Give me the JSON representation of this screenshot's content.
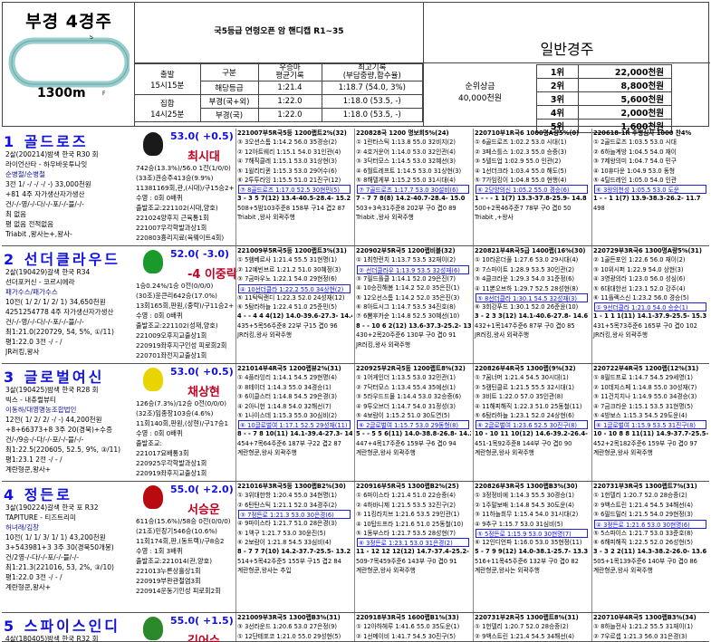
{
  "race": {
    "title": "부경 4경주",
    "distance": "1300m",
    "grade": "국5등급 연령오픈 암 핸디캡 R1~35",
    "type": "일반경주",
    "start_label": "출발",
    "start_time": "15시15분",
    "gather_label": "집합",
    "gather_time": "14시25분",
    "cols": [
      "구분",
      "우승마\n평균기록",
      "최고기록\n(부담중량,함수율)"
    ],
    "rows": [
      [
        "해당등급",
        "1:21.4",
        "1:18.7 (54.0, 3%)"
      ],
      [
        "부경(국+외)",
        "1:22.0",
        "1:18.0 (53.5, -)"
      ],
      [
        "부경(국)",
        "1:22.0",
        "1:18.0 (53.5, -)"
      ]
    ],
    "prize_label": "순위상금",
    "prize_total": "40,000천원",
    "prizes": [
      [
        "1위",
        "22,000천원"
      ],
      [
        "2위",
        "8,800천원"
      ],
      [
        "3위",
        "5,600천원"
      ],
      [
        "4위",
        "2,000천원"
      ],
      [
        "5위",
        "1,600천원"
      ]
    ]
  },
  "horses": [
    {
      "name": "1 골드로즈",
      "info": [
        "2살(200214)밤색 한국 R30 회",
        "라이언산타 - 하우바웃투나잇",
        "순병철/순병철",
        "3전 1/ -/ -/ -/ -) 33,000천원",
        "+81 4주 자가생산자가생산",
        "건/-/-영/-/-다/-/-포/-/-블/-/-",
        "최 없음",
        "평 없음 전적없음",
        "Triabit ,왕사는+,왕사-"
      ],
      "weight": "53.0( +0.5)",
      "jockey": "최시대",
      "silk": "#1a1a1a",
      "jinfo": [
        "742승(13.3%)/56.0 1전(1/0/0)",
        "(33조)권승주413승(9.9%)",
        "11381169회,관,(시대)/구15승2+",
        "수영 : 0회 0배퀴",
        "출발조교:221102(시대,양호)",
        "221024양후지 근육통1회",
        "221007우각학발과상1회",
        "220803흉리지료(육웨이트4회)"
      ],
      "past": [
        {
          "h": "221007부5R국5등 1200랩트2%(32)",
          "rows": [
            "③ 3오션스톰 1:14.2 56.0 35경승(2)",
            "② 12아트웨리 1:15.1 54.0 31인관(4)",
            "④ 7해직클레 1:15.1 53.0 31상현(3)",
            "⑤ 1윌리티퀸 1:15.3 53.0 29어수(6)",
            "⑥ 2투투라잉 1:15.5 51.0 21진구(12)"
          ],
          "hl": "⑦ 8골드로즈 1:17.0 52.5 30현민(5)",
          "tm": "3 - 3 5 7(12) 13.4-40.5-28.4- 15.2",
          "f": [
            "508+5밤103주준8 158부 구14 겹2 87",
            "Triabit ,왕사 외곽주행"
          ]
        },
        {
          "h": "220828국 1200 명보회5%(24)",
          "rows": [
            "① 1란타스틱 1:13.8 55.0 32비지(2)",
            "② 4호거운어 1:14.0 53.0 32인관(4)",
            "③ 3닥터모스 1:14.5 53.0 32혜선(3)",
            "④ 6월트레프트 1:14.5 53.0 31상현(3)",
            "⑤ 8해델게부 1:15.2 55.0 31시대(4)"
          ],
          "hl": "⑦ 7골드로즈 1:17.7 53.0 30설비(6)",
          "tm": "7 - 7 7 8(8) 14.2-40.7-28.4- 15.0",
          "f": [
            "503+3속31주준8 202부 구0 겹0 89",
            "Triabit ,왕사 외곽주행"
          ]
        },
        {
          "h": "220710부1R국6 1000명A량5%(0)",
          "rows": [
            "① 6골드로즈 1:02.2 53.0 시대(1)",
            "② 3페스틀스 1:02.3 55.0 승증(3)",
            "③ 5텔드업 1:02.9 55.0 인관(2)",
            "④ 1선더크라 1:03.4 55.0 해도(5)",
            "⑤ 7가임킹이 1:04.8 55.0 현행(4)"
          ],
          "hl": "⑥ 2당양의신 1:05.2 55.0 경승(6)",
          "tm": "1 - - - 1 1(7) 13.3-37.8-25.9- 14.8",
          "f": [
            "500+2목46주준7 78부 구0 겹0 50",
            "Triabit ,+왕사"
          ]
        },
        {
          "h": "220618-1R 주행심사 1000 찬4%",
          "rows": [
            "① 2골드로즈 1:03.5 53.0 시대",
            "② 6하늘계방 1:04.5 54.0 재이",
            "③ 7제왕의미 1:04.7 54.0 민구",
            "④ 10휴다운 1:04.9 53.0 동형",
            "⑤ 4틸드레인 1:05.0 54.0 인관"
          ],
          "hl": "⑥ 3왕의천성 1:05.5 53.0 도운",
          "tm": "1 - - 1 1(7) 13.9-38.3-26.2- 11.7",
          "f": [
            "498",
            ""
          ]
        }
      ]
    },
    {
      "name": "2 선더클라우드",
      "info": [
        "2살(190429)갈색 한국 R34",
        "선더포커신 - 코르시에라",
        "패가수스/패가수스",
        "10전( 1/ 2/ 1/ 2/ 1) 34,650천원",
        "4251254778 4주 자가생산자가생산",
        "건/-/-영/-/-다/-/-포/-/-블/-/-",
        "최1:21.0(220729, 54, 5%, ①/11)",
        "평1:22.0 3전 -/ - /",
        "JR러킹,왕사"
      ],
      "weight": "52.0( -3.0)",
      "jockey": "-4 이중락",
      "silk": "#1a9a2a",
      "jinfo": [
        "1승0.24%/1승 0전(0/0/0)",
        "(30조)윤큰리642승(17.0%)",
        "13회165회,판원,(중락)/구11승2+",
        "수영 : 0회 0배퀴",
        "출발조교:221102(성재,양호)",
        "221009오후지교출상1회",
        "220919좌후지구인성 피로회2회",
        "220701좌전지교출상1회"
      ],
      "past": [
        {
          "h": "221009부5R국5등 1200랩트3%(31)",
          "rows": [
            "① 5햄베르사 1:21.4 55.5 31현명(1)",
            "② 12예빈브르 1:21.2 51.0 30혜정(3)",
            "③ 7금마우노 1:22.1 54.0 29현정(6)"
          ],
          "hl": "④ 10선더클라 1:22.2 55.0 34상현(2)",
          "rows2": [
            "⑤ 11탁틱랜디 1:22.3 52.0 24성재(12)",
            "⑥ 5탐라하늘 1:22.4 51.0 25준민(5)"
          ],
          "tm": "4 - - 4 4 4(12) 14.0-39.6-27.3- 14.4",
          "f": [
            "435+5목56주준8 22부 구15 겹0 96",
            "JR러킹,왕사 외곽주행"
          ]
        },
        {
          "h": "220902부5R국5 1200랩비블(32)",
          "rows": [
            "① 1최항런치 1:13.7 53.5 32재이(2)"
          ],
          "hl": "② 선더클라우 1:13.9 53.5 32성재(6)",
          "rows2": [
            "③ 7필드플클 1:14.1 52.0 29은진(7)",
            "④ 10승진해봄 1:14.2 52.0 35은진(1)",
            "⑤ 12오선스톰 1:14.2 52.0 35은진(3)",
            "⑥ 8아트시그 1:14.7 53.5 34진호(8)",
            "⑦ 6뽐후카순 1:14.8 52.5 30혜선(10)"
          ],
          "tm": "8 - - 10 6 2(12) 13.6-37.3-25.2- 13.1",
          "f": [
            "430+2목20주준6 130부 구0 겹0 91",
            "JR러킹,왕사 외곽주행"
          ]
        },
        {
          "h": "220821부4R국5급 1400랩(16%(30)",
          "rows": [
            "① 10라온더풀 1:27.6 53.0 29시대(4)",
            "② 7스마이트 1:28.9 53.5 30인관(2)",
            "③ 4클크라운 1:29.3 54.0 31준정(6)",
            "④ 11뽄오브하 1:29.7 52.5 28성현(8)"
          ],
          "hl": "⑤ 8선더클라 1:30.1 54.5 32성재(3)",
          "rows2": [
            "⑥ 3희강푸드 1:30.1 52.0 26준윤(10)"
          ],
          "tm": "3 - 2 3 3(12) 14.1-40.6-27.8- 14.6",
          "f": [
            "432+1목147주준6 87부 구0 겹0 85",
            "JR러킹,왕사 외곽주행"
          ]
        },
        {
          "h": "220729부3R국6 1300명A량5%(31)",
          "hl": "① 9선더클라 1:21.0 54.0 승순(1)",
          "rows": [
            "② 1골든포인 1:22.6 56.0 재이(2)",
            "③ 10위시퍼 1:22.9 54.0 상현(3)",
            "④ 3영광의라 1:23.0 56.0 성심(6)",
            "⑤ 6대대한선 1:23.1 52.0 강주(4)",
            "⑥ 11플렉스신 1:23.2 56.0 경승(5)"
          ],
          "tm": "1 - 1 1 1(11) 14.1-37.9-25.5- 15.3",
          "f": [
            "431+5목73주준6 165부 구0 겹0 102",
            "JR러킹,왕사 외곽주행"
          ]
        }
      ]
    },
    {
      "name": "3 글로벌여신",
      "info": [
        "3살(190425)밤색 한국 R28 회",
        "빅스 - 내츄럴뷰티",
        "이동하/대영명농조합법인",
        "12전( 1/ 2/ 2/ -/ -) 44,200천원",
        "+8+66373+8 3주 20(경북)+수증",
        "건/-/9승-/-다/-/-포/-/-블/-/-",
        "최1:22.5(220605, 52.5, 9%, ③/11)",
        "평1:23.1 2전 -/ - /",
        "계란형쿤,왕사+"
      ],
      "weight": "53.0( +0.5)",
      "jockey": "채상현",
      "silk": "#e8d400",
      "jinfo": [
        "126승(7.3%)/12승 0전(0/0/0)",
        "(32조)임종창103승(4.6%)",
        "11회140회,판원,(상현)/구17승1",
        "수영 : 0회 0배퀴",
        "출발조교:",
        "221017요배통3회",
        "220925우각학발과상1회",
        "220919좌후지교출상1회"
      ],
      "past": [
        {
          "h": "221014부4R국5 1200랩뷰2%(31)",
          "rows": [
            "① 4플라잉리 1:14.1 54.5 29현명(4)",
            "② 8테이더 1:14.3 55.0 34경승(1)",
            "③ 6이클스터 1:14.8 54.5 29은경(3)",
            "④ 2아니헌 1:14.8 54.0 32해선(7)",
            "⑤ 1나이스데 1:15.3 55.0 30심비(2)"
          ],
          "hl": "⑥ 10글로벌여 1:17.1 52.5 29성재(11)",
          "tm": "8 - - 7 8 10(11) 14.1-39.4-27.3- 14.4",
          "f": [
            "454+7목64주준6 187부 구22 겹2 87",
            "계란형쿤,왕사 외곽주행"
          ]
        },
        {
          "h": "220925부2R국5등 1200랩트8%(32)",
          "rows": [
            "① 1어게인더 1:13.5 53.0 32민관(1)",
            "② 7닥터모스 1:13.4 55.4 35예선(1)",
            "③ 5라우드드물 1:14.4 53.0 32승증(6)",
            "④ 9투오브더 1:14.7 54.0 31정성(3)",
            "⑤ 4보람이 1:15.2 51.0 30도연(5)"
          ],
          "hl": "⑥ 2글로벌여 1:15.7 53.0 29동형(8)",
          "tm": "5 - - 5 5 6(11) 14.0-38.8-26.8- 14.2",
          "f": [
            "447+4목17주준6 159부 구6 겹0 94",
            "계란형쿤,왕사 외곽주행"
          ]
        },
        {
          "h": "220826부4R국5 1300랩(9%(32)",
          "rows": [
            "① 7꿈너머 1:21.4 54.5 30시대(1)",
            "② 5캠틴클르 1:21.5 55.5 32시대(1)",
            "③ 3비트 1:22.0 57.0 35인관(8)",
            "④ 11해피해직 1:22.3 51.0 25동철(11)",
            "⑤ 6탐라하늘 1:23.1 52.0 24상현(6)"
          ],
          "hl": "⑥ 2글로벌여 1:23.6 52.5 30진구(8)",
          "tm": "10 - 10 11 10(12) 14.6-39.2-26.4- 13.9",
          "f": [
            "451-1목92주준8 144부 구0 겹0 90",
            "계란형쿤,왕사 외곽주행"
          ]
        },
        {
          "h": "220722부4R국5 1200랩(12%(31)",
          "rows": [
            "① 8필드프로 1:14.7 54.5 29세영(1)",
            "② 10데지스페 1:14.8 55.0 30성재(7)",
            "③ 11건치치나 1:14.9 55.0 34경승(3)",
            "④ 7금크라운 1:15.1 53.5 31현명(5)",
            "⑤ 4방보스 1:15.3 54.5 29도운(4)"
          ],
          "hl": "⑥ 1글로벌여 1:15.9 53.5 31진구(8)",
          "tm": "10 - 10 8 8 11(11) 14.9-37.7-25.5- 13.4",
          "f": [
            "452+2목182주준6 159부 구0 겹0 97",
            "계란형쿤,왕사 외곽주행"
          ]
        }
      ]
    },
    {
      "name": "4 정든로",
      "info": [
        "3살(190224)갈색 한국 포 R32",
        "TAPITURE - 티즈트리미",
        "허녀래/김창",
        "10전( 1/ 1/ 3/ 1/ 1) 43,200천원",
        "3+543981+3 3주 30(경북50개봉)",
        "건/2영-/-다/-/-포/-/-블/-/-",
        "최1:21.3(221016, 53, 2%, ③/10)",
        "평1:22.0 3전 -/ - /",
        "계란형쿤,왕사+"
      ],
      "weight": "55.0( +2.0)",
      "jockey": "서승운",
      "silk": "#b80a10",
      "jinfo": [
        "611승(15.6%)/58승 0전(0/0/0)",
        "(21조)민장기546승(10.6%)",
        "11회174회,판,(동트랙)/구8승2",
        "수영 : 1회 3배퀴",
        "출발조교:221014(관,양호)",
        "221013누른상흘상1회",
        "220919부완관절염3회",
        "220914운동기인성 피로회2회"
      ],
      "past": [
        {
          "h": "221016부3R국5등 1300랩B2%(30)",
          "rows": [
            "① 3위대한항 1:20.4 55.0 34현명(1)",
            "② 6탄탄스틱 1:21.1 52.0 34경주(2)"
          ],
          "hl": "③ 7정든로 1:21.3 53.0 30은경(6)",
          "rows2": [
            "④ 9마이스타 1:21.7 51.0 28은경(3)",
            "⑤ 1맥구 1:21.7 53.0 30윤진(5)",
            "⑥ 2보람이 1:21.8 54.5 33심비(4)"
          ],
          "tm": "8 - 7 7 7(10) 14.2-37.7-25.5- 13.2",
          "f": [
            "514+5목42주준5 155부 구15 겹2 84",
            "계란형쿤,왕사는 추입"
          ]
        },
        {
          "h": "220916부5R국5 1300랩B2%(25)",
          "rows": [
            "① 6마이스타 1:21.4 51.0 22승증(4)",
            "② 4하바니제 1:21.5 53.5 32진구(2)",
            "③ 11킹라치브 1:21.6 53.5 29인관(1)",
            "④ 10탑드프라 1:21.6 51.0 25동철(10)",
            "⑤ 1동부스타 1:21.7 53.5 28성현(7)"
          ],
          "hl": "⑥ 3정든로 1:23.1 53.0 31은경(2)",
          "tm": "11 - 12 12 12(12) 14.7-37.4-25.2- 13.1",
          "f": [
            "509-7목459주준6 143부 구0 겹0 91",
            "계란형쿤,왕사 외곽주행"
          ]
        },
        {
          "h": "220826부3R국5 1300랩B3%(30)",
          "rows": [
            "① 3정정비에 1:14.3 55.5 30경승(1)",
            "② 1주말보배 1:14.8 54.5 30도운(4)",
            "③ 11하늘희무 1:15.4 54.0 31시대(2)",
            "④ 9추구 1:15.7 53.0 31심비(5)"
          ],
          "hl": "⑤ 5정든로 1:15.9 53.0 30현명(7)",
          "rows2": [
            "⑥ 12인디언파 1:16.0 53.0 35현정(11)"
          ],
          "tm": "5 - 7 9 9(12) 14.0-38.1-25.7- 13.3",
          "f": [
            "516+11목45주준6 132부 구0 겹0 82",
            "계란형쿤,왕사는 외곽주행"
          ]
        },
        {
          "h": "220731부3R국5 1300랩트7%(31)",
          "rows": [
            "① 1헌델리 1:20.7 52.0 28승증(2)",
            "② 9백스트린 1:21.4 54.5 34해선(4)",
            "③ 6필드밀러 1:21.5 54.0 29현정(3)"
          ],
          "hl": "④ 3정든로 1:21.6 53.0 30현명(6)",
          "rows2": [
            "⑤ 5스파이스 1:21.7 53.0 33준호(8)",
            "⑥ 6해피해직 1:22.5 52.0 26성현(5)"
          ],
          "tm": "3 - 3 2 2(11) 14.3-38.2-26.0- 13.6",
          "f": [
            "505+1목139주준6 140부 구0 겹0 86",
            "계란형쿤,왕사 외곽주행"
          ]
        }
      ]
    },
    {
      "name": "5 스파이스인디",
      "info": [
        "4살(180405)밤색 한국 R32 회"
      ],
      "weight": "55.0( +1.5)",
      "jockey": "김어수",
      "silk": "#2a8a2a",
      "jinfo": [],
      "past": [
        {
          "h": "221009부3R국5 1300랩B3%(31)",
          "rows": [
            "③ 3선라운드 1:20.6 53.0 27은정(9)",
            "① 12단테포코 1:21.0 55.0 29성현(5)"
          ],
          "tm": "",
          "f": []
        },
        {
          "h": "220918부3R국5 1600랩B1%(33)",
          "rows": [
            "① 12아하헤루 1:41.6 55.0 35도운(1)",
            "② 1선메이비 1:41.7 54.5 30진구(5)"
          ],
          "tm": "",
          "f": []
        },
        {
          "h": "220731부2R국5 1300랩트8%(31)",
          "rows": [
            "① 1헌델리 1:20.7 52.0 28승증(2)",
            "② 9백스트린 1:21.4 54.5 34해선(4)"
          ],
          "tm": "",
          "f": []
        },
        {
          "h": "220710부4R국5 1300랩B3%(34)",
          "rows": [
            "① 8하늘전사 1:21.2 55.5 31재이(1)",
            "② 7우르셉 1:21.3 56.0 31은경(3)"
          ],
          "tm": "",
          "f": []
        }
      ]
    }
  ]
}
